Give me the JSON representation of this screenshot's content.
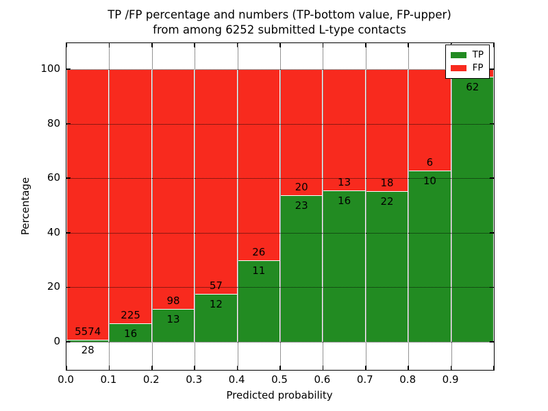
{
  "chart_data": {
    "type": "bar",
    "stacked": true,
    "title_line1": "TP /FP percentage and numbers (TP-bottom value, FP-upper)",
    "title_line2": "from among 6252 submitted L-type contacts",
    "xlabel": "Predicted probability",
    "ylabel": "Percentage",
    "xlim": [
      0.0,
      1.0
    ],
    "ylim": [
      -10.5,
      109.5
    ],
    "grid": true,
    "x_tick_labels": [
      "0.0",
      "0.1",
      "0.2",
      "0.3",
      "0.4",
      "0.5",
      "0.6",
      "0.7",
      "0.8",
      "0.9"
    ],
    "x_tick_values": [
      0.0,
      0.1,
      0.2,
      0.3,
      0.4,
      0.5,
      0.6,
      0.7,
      0.8,
      0.9
    ],
    "y_tick_labels": [
      "0",
      "20",
      "40",
      "60",
      "80",
      "100"
    ],
    "y_tick_values": [
      0,
      20,
      40,
      60,
      80,
      100
    ],
    "colors": {
      "tp": "#228b22",
      "fp": "#f82a1e"
    },
    "legend": [
      {
        "label": "TP",
        "color_key": "tp"
      },
      {
        "label": "FP",
        "color_key": "fp"
      }
    ],
    "legend_position": "upper right",
    "bins": [
      {
        "range": "0.0-0.1",
        "tp": 28,
        "fp": 5574,
        "tp_percent": 0.5,
        "fp_label_visible": true
      },
      {
        "range": "0.1-0.2",
        "tp": 16,
        "fp": 225,
        "tp_percent": 6.64,
        "fp_label_visible": true
      },
      {
        "range": "0.2-0.3",
        "tp": 13,
        "fp": 98,
        "tp_percent": 11.71,
        "fp_label_visible": true
      },
      {
        "range": "0.3-0.4",
        "tp": 12,
        "fp": 57,
        "tp_percent": 17.39,
        "fp_label_visible": true
      },
      {
        "range": "0.4-0.5",
        "tp": 11,
        "fp": 26,
        "tp_percent": 29.73,
        "fp_label_visible": true
      },
      {
        "range": "0.5-0.6",
        "tp": 23,
        "fp": 20,
        "tp_percent": 53.49,
        "fp_label_visible": true
      },
      {
        "range": "0.6-0.7",
        "tp": 16,
        "fp": 13,
        "tp_percent": 55.17,
        "fp_label_visible": true
      },
      {
        "range": "0.7-0.8",
        "tp": 22,
        "fp": 18,
        "tp_percent": 55.0,
        "fp_label_visible": true
      },
      {
        "range": "0.8-0.9",
        "tp": 10,
        "fp": 6,
        "tp_percent": 62.5,
        "fp_label_visible": true
      },
      {
        "range": "0.9-1.0",
        "tp": 62,
        "fp": 2,
        "tp_percent": 96.88,
        "fp_label_visible": false
      }
    ]
  }
}
